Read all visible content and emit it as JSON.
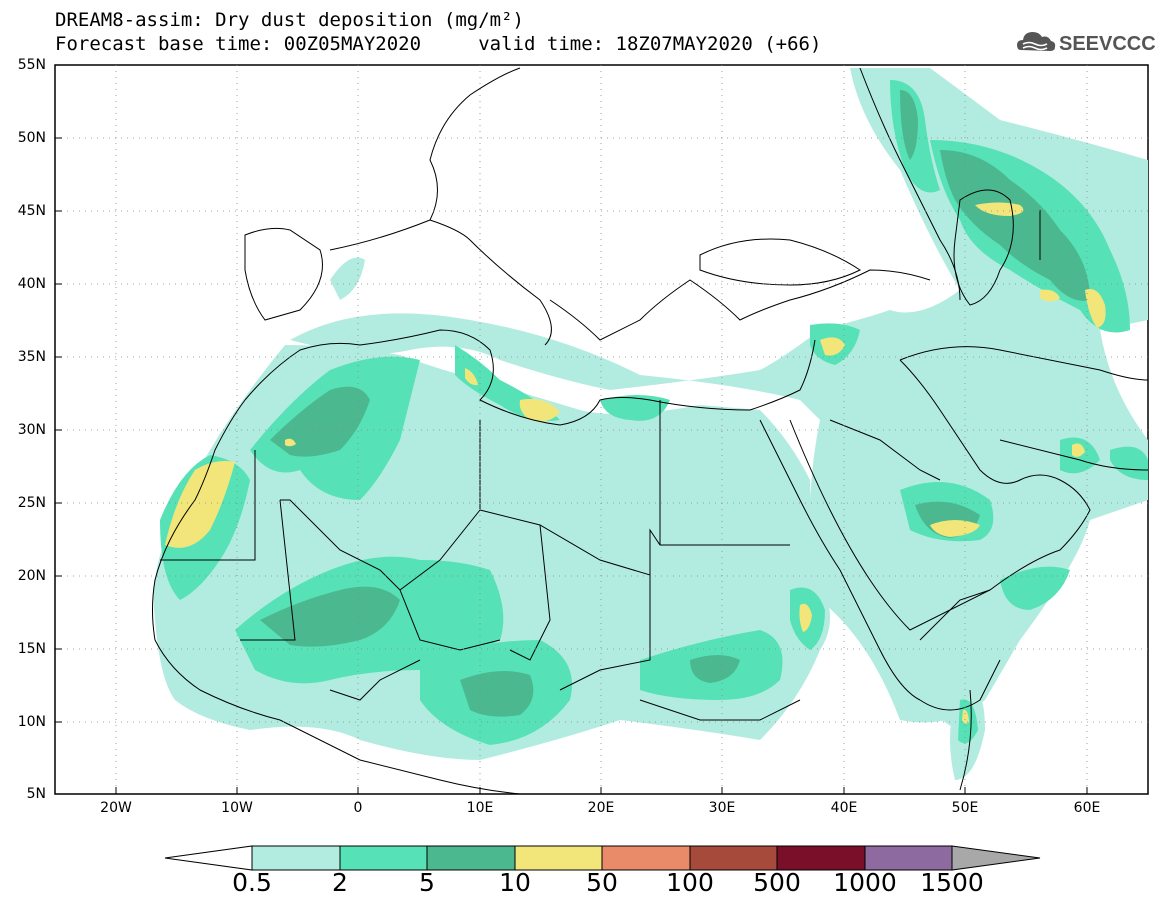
{
  "header": {
    "title_line1": "DREAM8-assim: Dry dust deposition (mg/m²)",
    "title_line2": "Forecast base time: 00Z05MAY2020     valid time: 18Z07MAY2020 (+66)",
    "logo_text": "SEEVCCC"
  },
  "map": {
    "lon_range": [
      -25,
      65
    ],
    "lat_range": [
      5,
      55
    ],
    "y_tick_labels": [
      "55N",
      "50N",
      "45N",
      "40N",
      "35N",
      "30N",
      "25N",
      "20N",
      "15N",
      "10N",
      "5N"
    ],
    "x_tick_labels": [
      "20W",
      "10W",
      "0",
      "10E",
      "20E",
      "30E",
      "40E",
      "50E",
      "60E"
    ]
  },
  "colorbar": {
    "labels": [
      "0.5",
      "2",
      "5",
      "10",
      "50",
      "100",
      "500",
      "1000",
      "1500"
    ],
    "colors": [
      "#b2ece0",
      "#56e2b6",
      "#4cb890",
      "#f2e67a",
      "#e98a68",
      "#a64a3c",
      "#7a0f2a",
      "#8d6aa0",
      "#a8a8a8"
    ]
  }
}
